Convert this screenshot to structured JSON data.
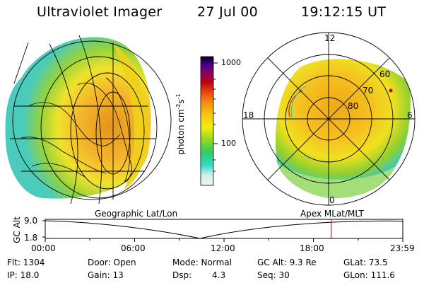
{
  "header": {
    "title": "Ultraviolet Imager",
    "date": "27 Jul 00",
    "time": "19:12:15 UT"
  },
  "colorbar": {
    "unit_main": "photon cm",
    "unit_exp1": "-2",
    "unit_mid": "s",
    "unit_exp2": "-1",
    "ticks": [
      "1000",
      "100"
    ]
  },
  "polar_plot": {
    "mlt_labels": {
      "top": "12",
      "left": "18",
      "right": "6",
      "bottom": "0"
    },
    "lat_labels": [
      "60",
      "70",
      "80"
    ]
  },
  "map_labels": {
    "geographic": "Geographic Lat/Lon",
    "apex": "Apex MLat/MLT"
  },
  "timeline": {
    "ylabel": "GC Alt",
    "ymax": "9.0",
    "ymin": "1.8",
    "ticks": [
      "00:00",
      "06:00",
      "12:00",
      "18:00",
      "23:59"
    ],
    "current_time_fraction": 0.8
  },
  "info": {
    "flt": "Flt: 1304",
    "ip": "IP: 18.0",
    "door": "Door: Open",
    "gain": "Gain: 13",
    "mode": "Mode: Normal",
    "dsp_label": "Dsp:",
    "dsp_value": "4.3",
    "gcalt": "GC Alt: 9.3 Re",
    "seq": "Seq: 30",
    "glat": "GLat: 73.5",
    "glon": "GLon: 111.6"
  }
}
